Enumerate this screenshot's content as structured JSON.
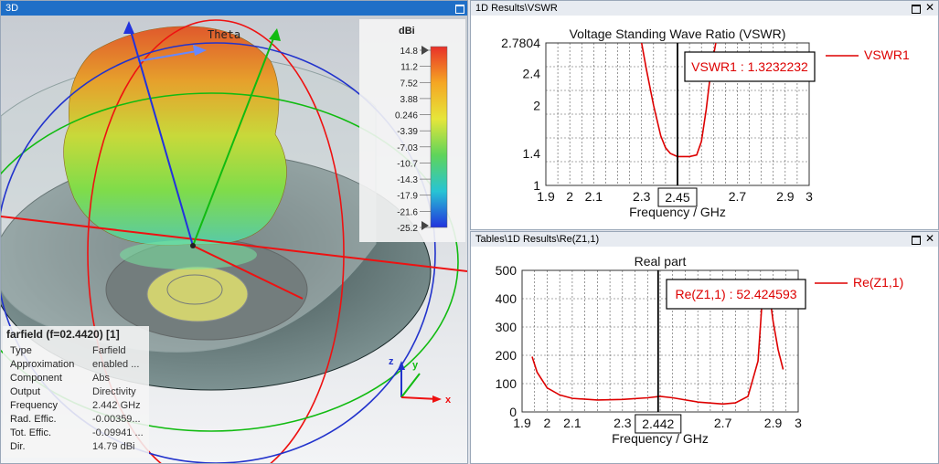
{
  "panels": {
    "view3d": {
      "title": "3D"
    },
    "vswr": {
      "title": "1D Results\\VSWR"
    },
    "re": {
      "title": "Tables\\1D Results\\Re(Z1,1)"
    }
  },
  "view3d": {
    "theta_label": "Theta",
    "colorbar": {
      "unit": "dBi",
      "ticks": [
        "14.8",
        "11.2",
        "7.52",
        "3.88",
        "0.246",
        "-3.39",
        "-7.03",
        "-10.7",
        "-14.3",
        "-17.9",
        "-21.6",
        "-25.2"
      ]
    },
    "axes": {
      "z": "z",
      "y": "y",
      "x": "x"
    },
    "info": {
      "header": "farfield (f=02.4420) [1]",
      "rows": [
        {
          "key": "Type",
          "value": "Farfield"
        },
        {
          "key": "Approximation",
          "value": "enabled ..."
        },
        {
          "key": "Component",
          "value": "Abs"
        },
        {
          "key": "Output",
          "value": "Directivity"
        },
        {
          "key": "Frequency",
          "value": "2.442 GHz"
        },
        {
          "key": "Rad. Effic.",
          "value": "-0.00359..."
        },
        {
          "key": "Tot. Effic.",
          "value": "-0.09941 ..."
        },
        {
          "key": "Dir.",
          "value": "14.79 dBi"
        }
      ]
    }
  },
  "chart_data": [
    {
      "type": "line",
      "title": "Voltage Standing Wave Ratio (VSWR)",
      "xlabel": "Frequency / GHz",
      "ylabel": "",
      "xlim": [
        1.9,
        3.0
      ],
      "ylim": [
        1.0,
        2.7804
      ],
      "x_ticks": [
        "1.9",
        "2",
        "2.1",
        "2.3",
        "2.45",
        "2.7",
        "2.9",
        "3"
      ],
      "x_tick_values": [
        1.9,
        2.0,
        2.1,
        2.3,
        2.45,
        2.7,
        2.9,
        3.0
      ],
      "y_ticks": [
        "2.7804",
        "2.4",
        "2",
        "1.4",
        "1"
      ],
      "y_tick_values": [
        2.7804,
        2.4,
        2.0,
        1.4,
        1.0
      ],
      "grid": true,
      "series": [
        {
          "name": "VSWR1",
          "color": "#dd0000",
          "x": [
            2.3,
            2.32,
            2.35,
            2.38,
            2.4,
            2.42,
            2.45,
            2.48,
            2.5,
            2.53,
            2.55,
            2.57,
            2.59,
            2.61
          ],
          "y": [
            2.78,
            2.45,
            2.0,
            1.62,
            1.47,
            1.4,
            1.36,
            1.36,
            1.36,
            1.38,
            1.55,
            1.95,
            2.45,
            2.78
          ]
        }
      ],
      "marker": {
        "x": 2.45,
        "label": "2.45",
        "readout": "VSWR1 : 1.3232232"
      }
    },
    {
      "type": "line",
      "title": "Real part",
      "xlabel": "Frequency / GHz",
      "ylabel": "",
      "xlim": [
        1.9,
        3.0
      ],
      "ylim": [
        0,
        500
      ],
      "x_ticks": [
        "1.9",
        "2",
        "2.1",
        "2.3",
        "2.442",
        "2.7",
        "2.9",
        "3"
      ],
      "x_tick_values": [
        1.9,
        2.0,
        2.1,
        2.3,
        2.442,
        2.7,
        2.9,
        3.0
      ],
      "y_ticks": [
        "500",
        "400",
        "300",
        "200",
        "100",
        "0"
      ],
      "y_tick_values": [
        500,
        400,
        300,
        200,
        100,
        0
      ],
      "grid": true,
      "series": [
        {
          "name": "Re(Z1,1)",
          "color": "#dd0000",
          "x": [
            1.94,
            1.96,
            2.0,
            2.05,
            2.1,
            2.2,
            2.3,
            2.4,
            2.45,
            2.5,
            2.6,
            2.7,
            2.75,
            2.8,
            2.84,
            2.86,
            2.88,
            2.9,
            2.92,
            2.94
          ],
          "y": [
            195,
            140,
            85,
            60,
            48,
            42,
            44,
            50,
            55,
            50,
            35,
            28,
            32,
            55,
            180,
            440,
            455,
            320,
            220,
            150
          ]
        }
      ],
      "marker": {
        "x": 2.442,
        "label": "2.442",
        "readout": "Re(Z1,1) : 52.424593"
      }
    }
  ]
}
